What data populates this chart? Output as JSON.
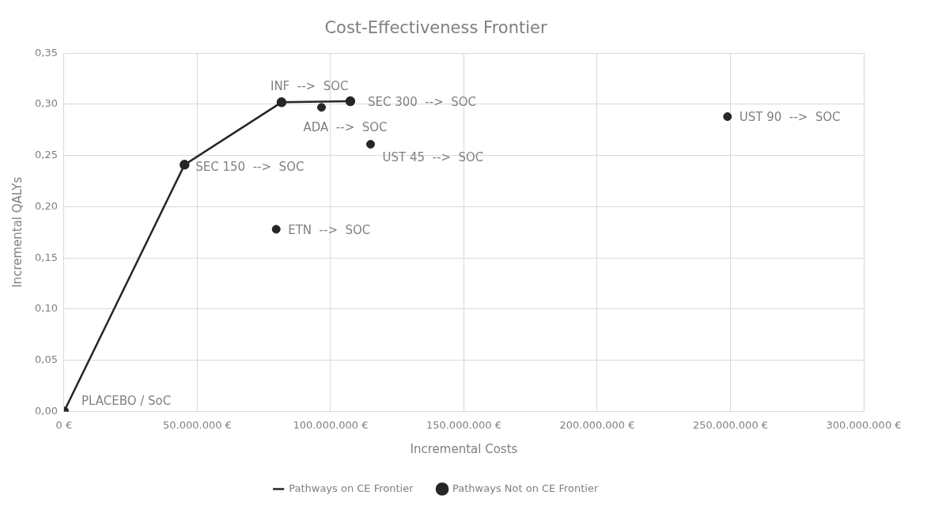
{
  "chart_data": {
    "type": "scatter",
    "title": "Cost-Effectiveness Frontier",
    "xlabel": "Incremental Costs",
    "ylabel": "Incremental QALYs",
    "series": [
      {
        "name": "Pathways on CE Frontier",
        "type": "line",
        "color": "#262626",
        "x": [
          0,
          45200000,
          81600000,
          107400000
        ],
        "values": [
          0,
          0.241,
          0.302,
          0.303
        ]
      },
      {
        "name": "Pathways Not on CE Frontier",
        "type": "scatter",
        "color": "#262626",
        "x": [
          96600000,
          115000000,
          79600000,
          248900000
        ],
        "values": [
          0.297,
          0.261,
          0.178,
          0.288
        ]
      }
    ],
    "annotations": [
      {
        "text": "PLACEBO / SoC",
        "x": 0,
        "y": 0
      },
      {
        "text": "SEC 150  -->  SOC",
        "x": 45200000,
        "y": 0.241
      },
      {
        "text": "INF  -->  SOC",
        "x": 81600000,
        "y": 0.302
      },
      {
        "text": "SEC 300  -->  SOC",
        "x": 107400000,
        "y": 0.303
      },
      {
        "text": "ADA  -->  SOC",
        "x": 96600000,
        "y": 0.297
      },
      {
        "text": "UST 45  -->  SOC",
        "x": 115000000,
        "y": 0.261
      },
      {
        "text": "ETN  -->  SOC",
        "x": 79600000,
        "y": 0.178
      },
      {
        "text": "UST 90  -->  SOC",
        "x": 248900000,
        "y": 0.288
      }
    ],
    "xlim": [
      0,
      300000000
    ],
    "xticks": [
      {
        "value": 0,
        "label": "0 €"
      },
      {
        "value": 50000000,
        "label": "50.000.000 €"
      },
      {
        "value": 100000000,
        "label": "100.000.000 €"
      },
      {
        "value": 150000000,
        "label": "150.000.000 €"
      },
      {
        "value": 200000000,
        "label": "200.000.000 €"
      },
      {
        "value": 250000000,
        "label": "250.000.000 €"
      },
      {
        "value": 300000000,
        "label": "300.000.000 €"
      }
    ],
    "ylim": [
      0,
      0.35
    ],
    "yticks": [
      {
        "value": 0,
        "label": "0,00"
      },
      {
        "value": 0.05,
        "label": "0,05"
      },
      {
        "value": 0.1,
        "label": "0,10"
      },
      {
        "value": 0.15,
        "label": "0,15"
      },
      {
        "value": 0.2,
        "label": "0,20"
      },
      {
        "value": 0.25,
        "label": "0,25"
      },
      {
        "value": 0.3,
        "label": "0,30"
      },
      {
        "value": 0.35,
        "label": "0,35"
      }
    ],
    "grid": true,
    "legend": "bottom",
    "marker": "circle"
  }
}
